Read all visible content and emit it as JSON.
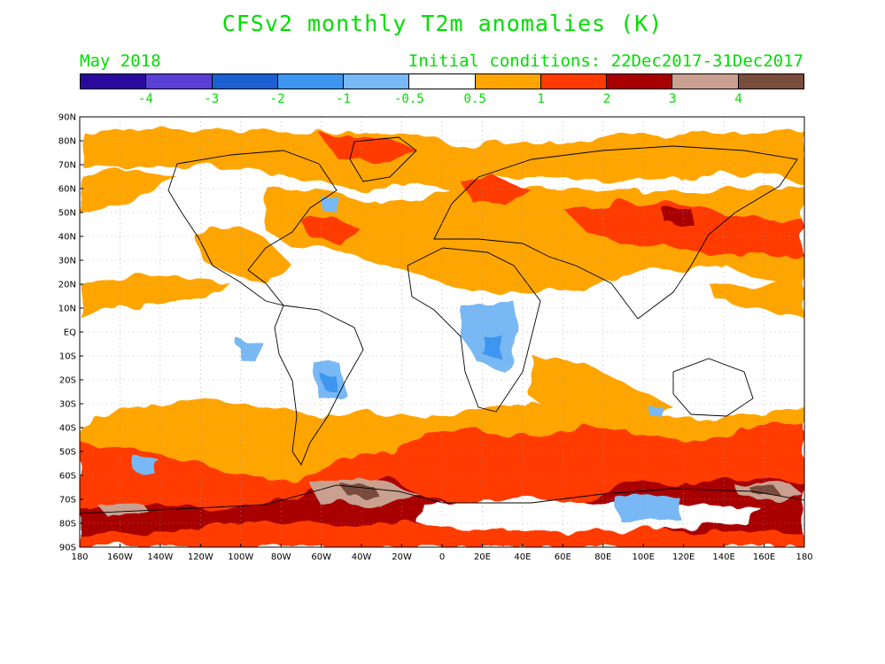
{
  "title": "CFSv2 monthly T2m anomalies (K)",
  "month_label": "May 2018",
  "initial_conditions": "Initial conditions: 22Dec2017-31Dec2017",
  "colorbar": {
    "colors": [
      "#2a0a9e",
      "#5a3fd6",
      "#1c5fd2",
      "#3d96f0",
      "#78b8f5",
      "#ffffff",
      "#ffa500",
      "#ff3a00",
      "#a80000",
      "#caa090",
      "#7a4c3c"
    ],
    "labels": [
      "-4",
      "-3",
      "-2",
      "-1",
      "-0.5",
      "0.5",
      "1",
      "2",
      "3",
      "4"
    ]
  },
  "map": {
    "lat_labels": [
      "90N",
      "80N",
      "70N",
      "60N",
      "50N",
      "40N",
      "30N",
      "20N",
      "10N",
      "EQ",
      "10S",
      "20S",
      "30S",
      "40S",
      "50S",
      "60S",
      "70S",
      "80S",
      "90S"
    ],
    "lon_labels": [
      "180",
      "160W",
      "140W",
      "120W",
      "100W",
      "80W",
      "60W",
      "40W",
      "20W",
      "0",
      "20E",
      "40E",
      "60E",
      "80E",
      "100E",
      "120E",
      "140E",
      "160E",
      "180"
    ]
  }
}
